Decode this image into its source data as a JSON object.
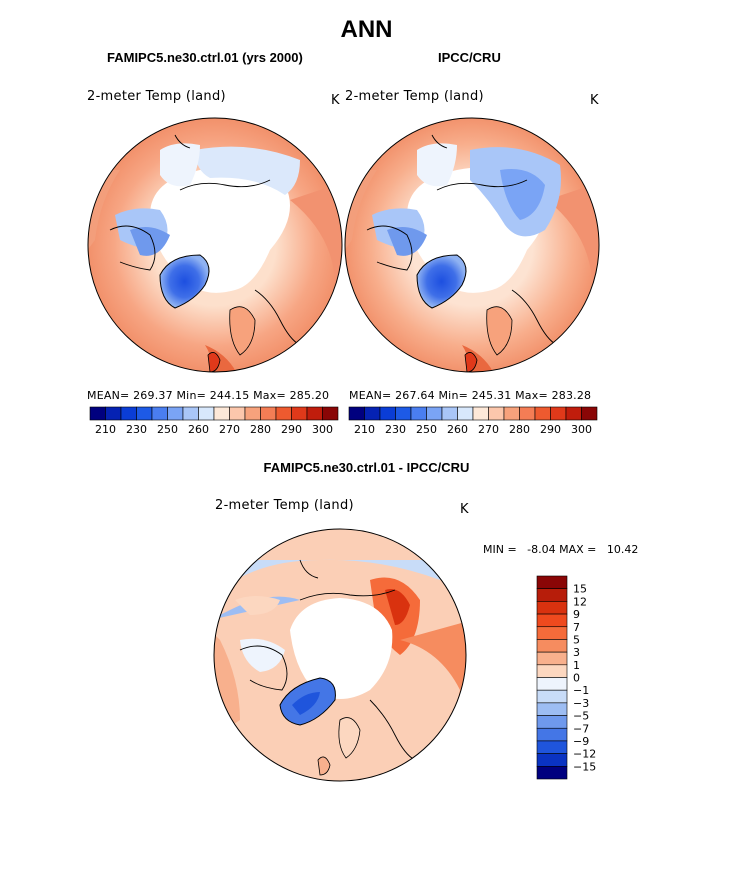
{
  "title": "ANN",
  "panels": [
    {
      "title": "FAMIPC5.ne30.ctrl.01 (yrs 2000)",
      "variable": "2-meter Temp (land)",
      "unit": "K",
      "stats": "MEAN= 269.37   Min= 244.15   Max= 285.20"
    },
    {
      "title": "IPCC/CRU",
      "variable": "2-meter Temp (land)",
      "unit": "K",
      "stats": "MEAN= 267.64   Min= 245.31   Max= 283.28"
    }
  ],
  "abs_colorbar": {
    "colors": [
      "#00007f",
      "#0522b3",
      "#0a3dd6",
      "#1d5ae6",
      "#4a7ef0",
      "#7aa4f5",
      "#a9c6f8",
      "#d8e8fc",
      "#fde8d8",
      "#fcc7ac",
      "#f7a27c",
      "#f47d55",
      "#ee5a2f",
      "#e0391a",
      "#c01d0c",
      "#8a0606"
    ],
    "labels": [
      "210",
      "230",
      "250",
      "260",
      "270",
      "280",
      "290",
      "300"
    ]
  },
  "diff": {
    "title": "FAMIPC5.ne30.ctrl.01 - IPCC/CRU",
    "variable": "2-meter Temp (land)",
    "unit": "K",
    "minmax": "MIN =   -8.04 MAX =   10.42",
    "colors": [
      "#8a0606",
      "#b71d0a",
      "#d9320f",
      "#ef4a1e",
      "#f56b3a",
      "#f68c5f",
      "#f8b08d",
      "#fcd7c0",
      "#eef4fd",
      "#c8dcf8",
      "#9dbdf3",
      "#6f99ed",
      "#4476e6",
      "#1f55dc",
      "#0a33c2",
      "#00007f"
    ],
    "labels": [
      "15",
      "12",
      "9",
      "7",
      "5",
      "3",
      "1",
      "0",
      "−1",
      "−3",
      "−5",
      "−7",
      "−9",
      "−12",
      "−15"
    ]
  },
  "chart_data": {
    "type": "heatmap",
    "title": "ANN",
    "panels": [
      {
        "name": "FAMIPC5.ne30.ctrl.01 (yrs 2000)",
        "mean": 269.37,
        "min": 244.15,
        "max": 285.2,
        "units": "K"
      },
      {
        "name": "IPCC/CRU",
        "mean": 267.64,
        "min": 245.31,
        "max": 283.28,
        "units": "K"
      },
      {
        "name": "FAMIPC5.ne30.ctrl.01 - IPCC/CRU",
        "min": -8.04,
        "max": 10.42,
        "units": "K"
      }
    ],
    "abs_levels": [
      210,
      230,
      250,
      260,
      270,
      280,
      290,
      300
    ],
    "diff_levels": [
      15,
      12,
      9,
      7,
      5,
      3,
      1,
      0,
      -1,
      -3,
      -5,
      -7,
      -9,
      -12,
      -15
    ]
  }
}
